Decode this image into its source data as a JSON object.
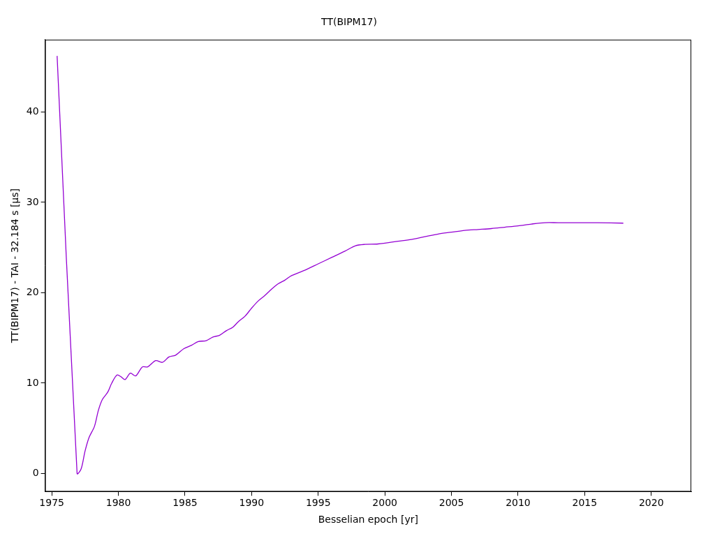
{
  "chart_data": {
    "type": "line",
    "title": "TT(BIPM17)",
    "x_label": "Besselian epoch [yr]",
    "y_label": "TT(BIPM17) - TAI - 32.184 s [µs]",
    "x": [
      1975.4,
      1976.9,
      1977.2,
      1977.5,
      1977.8,
      1978.2,
      1978.5,
      1978.8,
      1979.2,
      1979.5,
      1979.9,
      1980.2,
      1980.5,
      1980.9,
      1981.3,
      1981.8,
      1982.2,
      1982.8,
      1983.3,
      1983.8,
      1984.3,
      1984.9,
      1985.5,
      1986.0,
      1986.6,
      1987.1,
      1987.6,
      1988.1,
      1988.6,
      1989.0,
      1989.5,
      1990.0,
      1990.5,
      1991.0,
      1991.5,
      1992.0,
      1992.5,
      1993.0,
      1994.0,
      1995.0,
      1996.0,
      1997.0,
      1997.8,
      1998.5,
      1999.5,
      2001.0,
      2002.0,
      2003.0,
      2004.0,
      2005.0,
      2006.0,
      2007.0,
      2008.0,
      2009.0,
      2010.0,
      2011.0,
      2012.0,
      2013.0,
      2014.0,
      2016.0,
      2017.9
    ],
    "values": [
      46.2,
      0,
      0.5,
      2.5,
      4,
      5.2,
      7,
      8.2,
      9,
      10,
      10.9,
      10.7,
      10.4,
      11.1,
      10.8,
      11.8,
      11.8,
      12.5,
      12.3,
      12.9,
      13.1,
      13.8,
      14.2,
      14.6,
      14.7,
      15.1,
      15.3,
      15.8,
      16.2,
      16.8,
      17.4,
      18.3,
      19.1,
      19.7,
      20.4,
      21.0,
      21.4,
      21.9,
      22.5,
      23.2,
      23.9,
      24.6,
      25.2,
      25.35,
      25.4,
      25.7,
      25.9,
      26.2,
      26.5,
      26.7,
      26.9,
      27.0,
      27.1,
      27.25,
      27.4,
      27.6,
      27.75,
      27.75,
      27.75,
      27.75,
      27.7
    ],
    "color": "#9400d3",
    "xlim": [
      1974.5,
      2023
    ],
    "xticks": [
      1975,
      1980,
      1985,
      1990,
      1995,
      2000,
      2005,
      2010,
      2015,
      2020
    ],
    "ylim": [
      -2,
      48
    ],
    "yticks": [
      0,
      10,
      20,
      30,
      40
    ],
    "grid": false
  }
}
